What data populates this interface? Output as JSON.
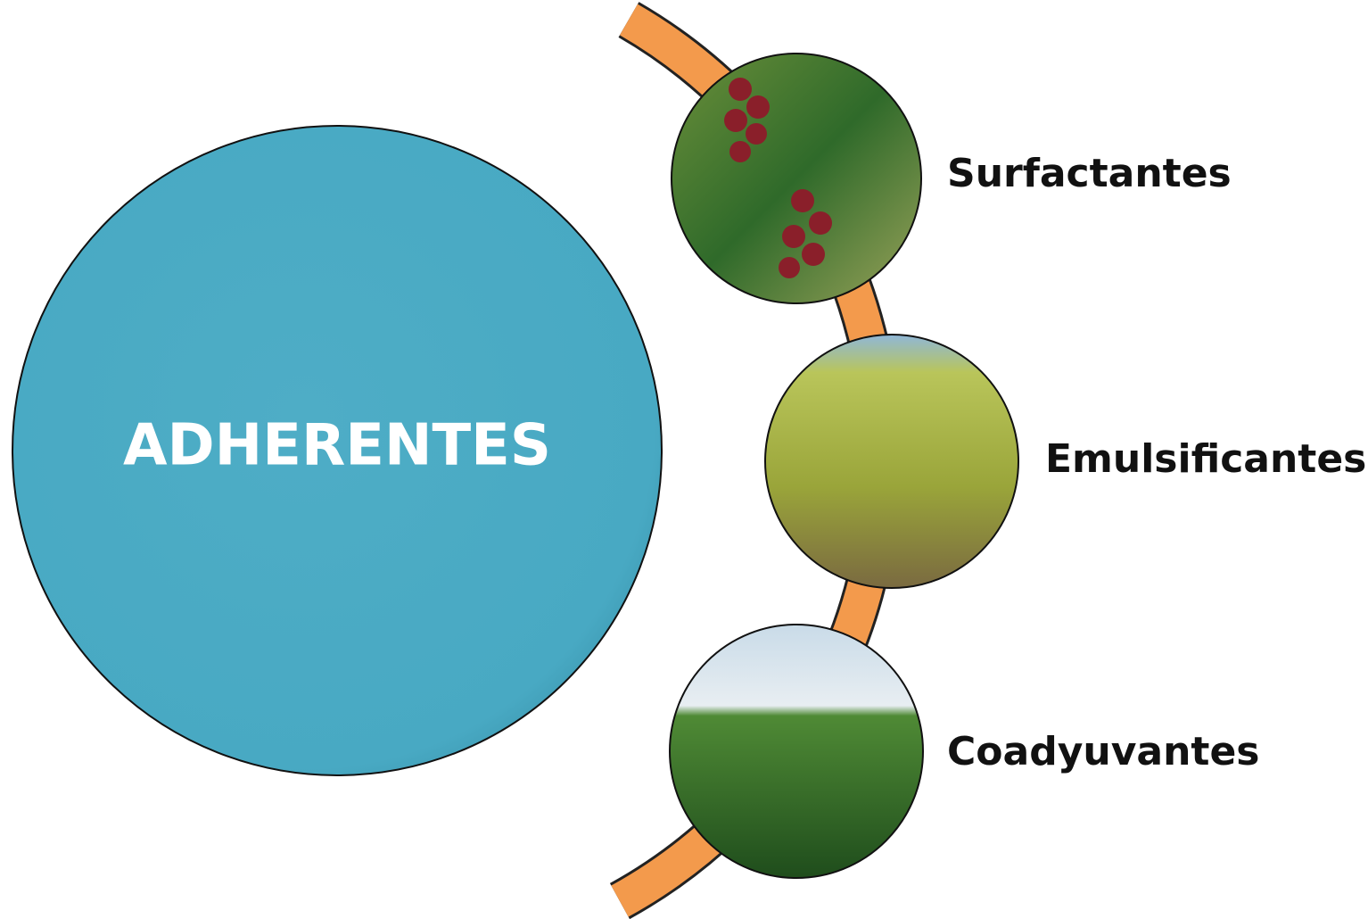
{
  "center": {
    "label": "ADHERENTES"
  },
  "items": [
    {
      "label": "Surfactantes"
    },
    {
      "label": "Emulsificantes"
    },
    {
      "label": "Coadyuvantes"
    }
  ]
}
